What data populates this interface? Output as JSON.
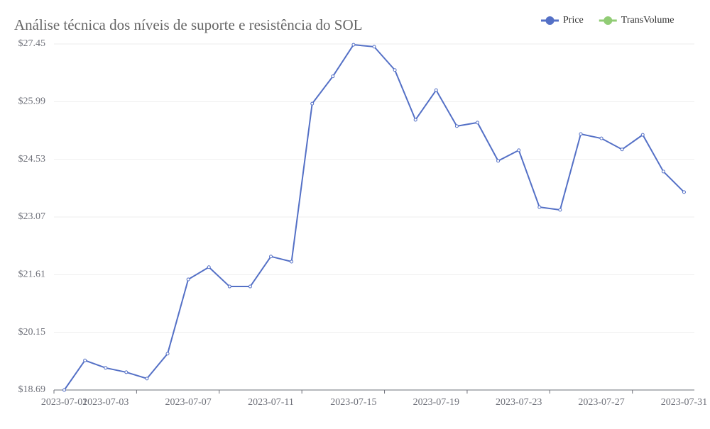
{
  "chart_data": {
    "type": "line",
    "title": "Análise técnica dos níveis de suporte e resistência do SOL",
    "categories": [
      "2023-07-01",
      null,
      "2023-07-03",
      null,
      null,
      null,
      "2023-07-07",
      null,
      null,
      null,
      "2023-07-11",
      null,
      null,
      null,
      "2023-07-15",
      null,
      null,
      null,
      "2023-07-19",
      null,
      null,
      null,
      "2023-07-23",
      null,
      null,
      null,
      "2023-07-27",
      null,
      null,
      null,
      "2023-07-31"
    ],
    "series": [
      {
        "name": "Price",
        "color": "#5470c6",
        "values": [
          18.69,
          19.44,
          19.25,
          19.14,
          18.98,
          19.61,
          21.49,
          21.8,
          21.31,
          21.31,
          22.07,
          21.94,
          25.94,
          26.63,
          27.43,
          27.38,
          26.79,
          25.53,
          26.28,
          25.37,
          25.46,
          24.49,
          24.76,
          23.32,
          23.25,
          25.17,
          25.06,
          24.78,
          25.15,
          24.22,
          23.7
        ]
      },
      {
        "name": "TransVolume",
        "color": "#91cc75",
        "values": [
          null,
          null,
          null,
          null,
          null,
          null,
          null,
          null,
          null,
          null,
          null,
          null,
          null,
          null,
          null,
          null,
          null,
          null,
          null,
          null,
          null,
          null,
          null,
          null,
          null,
          null,
          null,
          null,
          null,
          null,
          null
        ]
      }
    ],
    "ylim": [
      18.69,
      27.45
    ],
    "yticks": [
      {
        "value": 18.69,
        "label": "$18.69"
      },
      {
        "value": 20.15,
        "label": "$20.15"
      },
      {
        "value": 21.61,
        "label": "$21.61"
      },
      {
        "value": 23.07,
        "label": "$23.07"
      },
      {
        "value": 24.53,
        "label": "$24.53"
      },
      {
        "value": 25.99,
        "label": "$25.99"
      },
      {
        "value": 27.45,
        "label": "$27.45"
      }
    ],
    "grid": true,
    "legend": "top-right"
  }
}
